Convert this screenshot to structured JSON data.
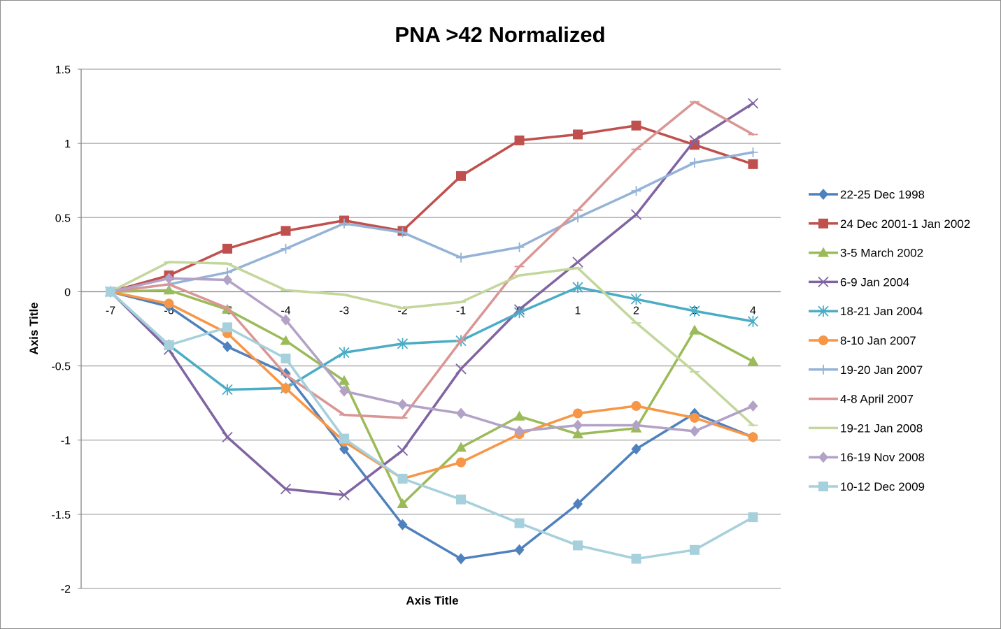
{
  "chart_data": {
    "type": "line",
    "title": "PNA >42 Normalized",
    "xlabel": "Axis Title",
    "ylabel": "Axis Title",
    "ylim": [
      -2,
      1.5
    ],
    "yticks": [
      1.5,
      1,
      0.5,
      0,
      -0.5,
      -1,
      -1.5,
      -2
    ],
    "ytick_labels": [
      "1.5",
      "1",
      "0.5",
      "0",
      "-0.5",
      "-1",
      "-1.5",
      "-2"
    ],
    "categories": [
      "-7",
      "-6",
      "-5",
      "-4",
      "-3",
      "-2",
      "-1",
      "0",
      "1",
      "2",
      "3",
      "4"
    ],
    "grid": true,
    "legend_position": "right",
    "series": [
      {
        "name": "22-25 Dec 1998",
        "color": "#4f81bd",
        "marker": "diamond",
        "values": [
          0,
          -0.1,
          -0.37,
          -0.55,
          -1.06,
          -1.57,
          -1.8,
          -1.74,
          -1.43,
          -1.06,
          -0.82,
          -0.98
        ]
      },
      {
        "name": "24 Dec 2001-1 Jan 2002",
        "color": "#c0504d",
        "marker": "square",
        "values": [
          0,
          0.11,
          0.29,
          0.41,
          0.48,
          0.41,
          0.78,
          1.02,
          1.06,
          1.12,
          0.99,
          0.86
        ]
      },
      {
        "name": "3-5 March 2002",
        "color": "#9bbb59",
        "marker": "triangle",
        "values": [
          0,
          0.01,
          -0.12,
          -0.33,
          -0.6,
          -1.43,
          -1.05,
          -0.84,
          -0.96,
          -0.92,
          -0.26,
          -0.47
        ]
      },
      {
        "name": "6-9 Jan 2004",
        "color": "#8064a2",
        "marker": "x",
        "values": [
          0,
          -0.39,
          -0.98,
          -1.33,
          -1.37,
          -1.07,
          -0.52,
          -0.12,
          0.2,
          0.52,
          1.02,
          1.27
        ]
      },
      {
        "name": "18-21 Jan 2004",
        "color": "#4bacc6",
        "marker": "star",
        "values": [
          0,
          -0.36,
          -0.66,
          -0.65,
          -0.41,
          -0.35,
          -0.33,
          -0.14,
          0.03,
          -0.05,
          -0.13,
          -0.2
        ]
      },
      {
        "name": "8-10 Jan 2007",
        "color": "#f79646",
        "marker": "circle",
        "values": [
          0,
          -0.08,
          -0.28,
          -0.65,
          -1.01,
          -1.26,
          -1.15,
          -0.96,
          -0.82,
          -0.77,
          -0.85,
          -0.98
        ]
      },
      {
        "name": "19-20 Jan 2007",
        "color": "#95b3d7",
        "marker": "plus",
        "values": [
          0,
          0.05,
          0.13,
          0.29,
          0.46,
          0.4,
          0.23,
          0.3,
          0.5,
          0.68,
          0.87,
          0.94
        ]
      },
      {
        "name": "4-8 April 2007",
        "color": "#d99694",
        "marker": "dash",
        "values": [
          0,
          0.05,
          -0.11,
          -0.56,
          -0.83,
          -0.85,
          -0.33,
          0.17,
          0.55,
          0.96,
          1.28,
          1.06
        ]
      },
      {
        "name": "19-21 Jan 2008",
        "color": "#c3d69b",
        "marker": "dash",
        "values": [
          0,
          0.2,
          0.19,
          0.01,
          -0.02,
          -0.11,
          -0.07,
          0.11,
          0.16,
          -0.21,
          -0.54,
          -0.9
        ]
      },
      {
        "name": "16-19 Nov 2008",
        "color": "#b2a2c7",
        "marker": "diamond",
        "values": [
          0,
          0.09,
          0.08,
          -0.19,
          -0.67,
          -0.76,
          -0.82,
          -0.94,
          -0.9,
          -0.9,
          -0.94,
          -0.77
        ]
      },
      {
        "name": "10-12 Dec 2009",
        "color": "#a5d0dc",
        "marker": "square",
        "values": [
          0,
          -0.36,
          -0.24,
          -0.45,
          -0.99,
          -1.26,
          -1.4,
          -1.56,
          -1.71,
          -1.8,
          -1.74,
          -1.52
        ]
      }
    ]
  }
}
